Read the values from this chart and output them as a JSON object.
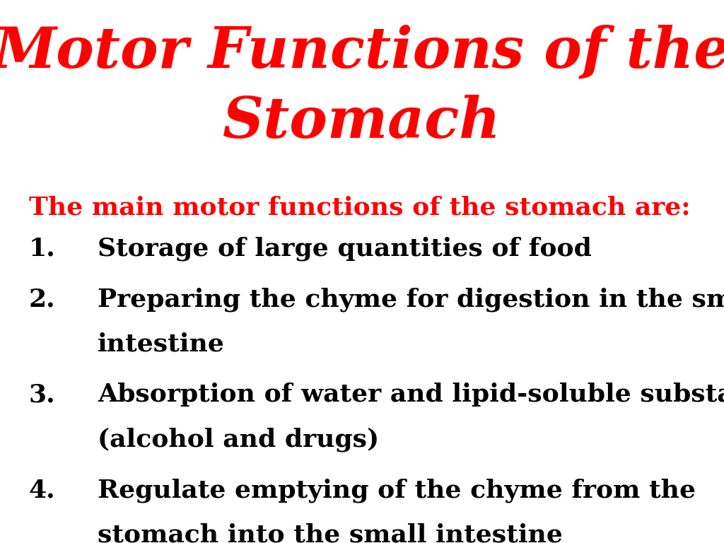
{
  "title_line1": "Motor Functions of the",
  "title_line2": "Stomach",
  "title_color": "#FF0000",
  "title_fontsize": 58,
  "subtitle": "The main motor functions of the stomach are:",
  "subtitle_color": "#FF0000",
  "subtitle_fontsize": 26,
  "items": [
    [
      "Storage of large quantities of food"
    ],
    [
      "Preparing the chyme for digestion in the small",
      "intestine"
    ],
    [
      "Absorption of water and lipid-soluble substances",
      "(alcohol and drugs)"
    ],
    [
      "Regulate emptying of the chyme from the",
      "stomach into the small intestine"
    ]
  ],
  "item_color": "#000000",
  "item_fontsize": 26,
  "background_color": "#FFFFFF",
  "font_family": "DejaVu Serif"
}
